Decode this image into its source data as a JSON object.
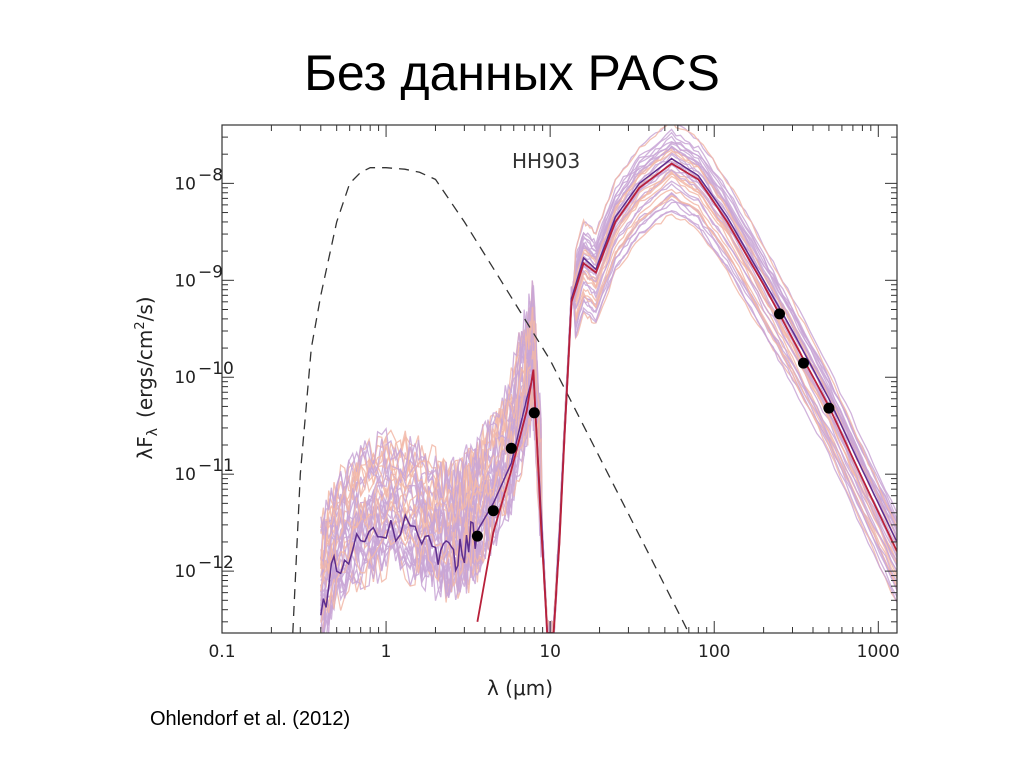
{
  "slide": {
    "title": "Без данных PACS",
    "caption": "Ohlendorf et al. (2012)"
  },
  "chart_data": {
    "type": "line",
    "annotation": "HH903",
    "xlabel": "λ (μm)",
    "ylabel": "λF",
    "ylabel_sub": "λ",
    "ylabel_units": "(ergs/cm",
    "ylabel_units_sup": "2",
    "ylabel_units_end": "/s)",
    "x_scale": "log",
    "y_scale": "log",
    "xlim": [
      0.1,
      1300
    ],
    "ylim": [
      2.3e-13,
      4e-08
    ],
    "x_ticks": [
      {
        "value": 0.1,
        "label": "0.1"
      },
      {
        "value": 1,
        "label": "1"
      },
      {
        "value": 10,
        "label": "10"
      },
      {
        "value": 100,
        "label": "100"
      },
      {
        "value": 1000,
        "label": "1000"
      }
    ],
    "y_ticks": [
      {
        "value": 1e-12,
        "base": "10",
        "exp": "−12"
      },
      {
        "value": 1e-11,
        "base": "10",
        "exp": "−11"
      },
      {
        "value": 1e-10,
        "base": "10",
        "exp": "−10"
      },
      {
        "value": 1e-09,
        "base": "10",
        "exp": "−9"
      },
      {
        "value": 1e-08,
        "base": "10",
        "exp": "−8"
      }
    ],
    "grid": false,
    "colors": {
      "stellar": "#333333",
      "best_fit": "#b8203a",
      "dark_model": "#5e2e8e",
      "light_model": "#c9a6d6",
      "pink_model": "#f2b8a8",
      "points": "#000000"
    },
    "observed_points": {
      "x": [
        3.6,
        4.5,
        5.8,
        8.0,
        250,
        350,
        500
      ],
      "y": [
        2.3e-12,
        4.2e-12,
        1.85e-11,
        4.3e-11,
        4.5e-10,
        1.4e-10,
        4.8e-11
      ]
    },
    "stellar_photosphere": {
      "x": [
        0.27,
        0.3,
        0.35,
        0.4,
        0.5,
        0.6,
        0.7,
        0.8,
        1.0,
        1.3,
        1.6,
        2.0,
        3.0,
        5.0,
        10,
        20,
        40,
        70
      ],
      "y": [
        2.3e-13,
        1e-11,
        2e-10,
        7e-10,
        4e-09,
        1e-08,
        1.3e-08,
        1.45e-08,
        1.45e-08,
        1.4e-08,
        1.3e-08,
        1.1e-08,
        4e-09,
        1e-09,
        1.5e-10,
        1.5e-11,
        1.5e-12,
        2.3e-13
      ]
    },
    "best_fit": {
      "x": [
        3.6,
        4.5,
        5.8,
        7.2,
        7.9,
        8.8,
        9.6,
        10.5,
        11.4,
        12.2,
        13.5,
        16,
        19,
        25,
        35,
        55,
        80,
        120,
        200,
        300,
        500,
        800,
        1300
      ],
      "y": [
        3e-13,
        2.5e-12,
        1.1e-11,
        4.5e-11,
        1.2e-10,
        3e-12,
        2.3e-13,
        2.3e-13,
        2e-12,
        2.2e-11,
        6e-10,
        1.5e-09,
        1.2e-09,
        4e-09,
        9e-09,
        1.6e-08,
        1.1e-08,
        4e-09,
        9e-10,
        2.5e-10,
        5e-11,
        9e-12,
        1.6e-12
      ]
    },
    "dark_model": {
      "x": [
        0.4,
        0.5,
        0.7,
        1.0,
        1.5,
        2.0,
        2.5,
        3.0,
        3.6,
        4.5,
        5.8,
        7.2,
        7.9,
        8.8,
        9.6,
        10.5,
        11.4,
        12.2,
        13.5,
        16,
        19,
        25,
        35,
        55,
        80,
        120,
        200,
        300,
        500,
        800,
        1300
      ],
      "y": [
        4e-13,
        1.2e-12,
        2.2e-12,
        3e-12,
        2.5e-12,
        1.8e-12,
        1.4e-12,
        1.8e-12,
        2.6e-12,
        5e-12,
        1.3e-11,
        6e-11,
        1.05e-10,
        4e-12,
        2.3e-13,
        2.3e-13,
        2.5e-12,
        2.5e-11,
        6.5e-10,
        1.7e-09,
        1.3e-09,
        4.5e-09,
        1e-08,
        1.8e-08,
        1.2e-08,
        4.5e-09,
        1e-09,
        3e-10,
        6e-11,
        1.1e-11,
        2e-12
      ]
    }
  }
}
